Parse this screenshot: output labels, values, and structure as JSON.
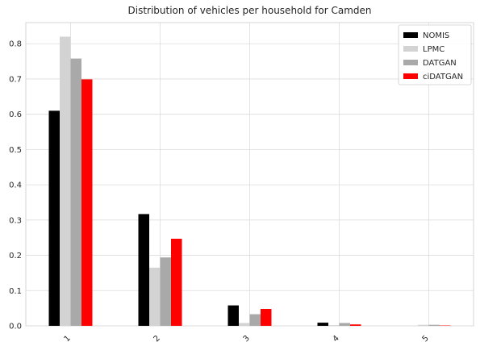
{
  "chart_data": {
    "type": "bar",
    "title": "Distribution of vehicles per household for Camden",
    "xlabel": "",
    "ylabel": "",
    "categories": [
      "1",
      "2",
      "3",
      "4",
      "5"
    ],
    "ylim": [
      0,
      0.86
    ],
    "yticks": [
      "0.0",
      "0.1",
      "0.2",
      "0.3",
      "0.4",
      "0.5",
      "0.6",
      "0.7",
      "0.8"
    ],
    "grid": true,
    "legend_position": "top-right",
    "series": [
      {
        "name": "NOMIS",
        "color": "#000000",
        "values": [
          0.61,
          0.317,
          0.058,
          0.009,
          0.0
        ]
      },
      {
        "name": "LPMC",
        "color": "#d3d3d3",
        "values": [
          0.82,
          0.165,
          0.008,
          0.002,
          0.003
        ]
      },
      {
        "name": "DATGAN",
        "color": "#a9a9a9",
        "values": [
          0.758,
          0.194,
          0.033,
          0.008,
          0.003
        ]
      },
      {
        "name": "ciDATGAN",
        "color": "#ff0000",
        "values": [
          0.699,
          0.247,
          0.048,
          0.004,
          0.001
        ]
      }
    ]
  }
}
